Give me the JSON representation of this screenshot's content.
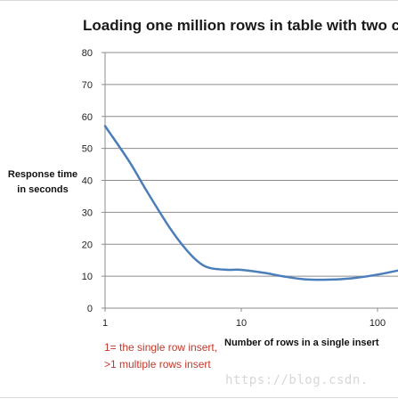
{
  "chart_data": {
    "type": "line",
    "title": "Loading one million rows in table with two c",
    "xlabel": "Number of rows in a single insert",
    "ylabel": [
      "Response time",
      "in seconds"
    ],
    "x_scale": "log",
    "xlim": [
      1,
      200
    ],
    "ylim": [
      0,
      80
    ],
    "x_ticks": [
      "1",
      "10",
      "100"
    ],
    "y_ticks": [
      "0",
      "10",
      "20",
      "30",
      "40",
      "50",
      "60",
      "70",
      "80"
    ],
    "grid": "horizontal",
    "legend": "none",
    "series": [
      {
        "color": "#4a7ebb",
        "points": [
          {
            "x": 1,
            "y": 57
          },
          {
            "x": 1.5,
            "y": 46
          },
          {
            "x": 2,
            "y": 37
          },
          {
            "x": 3,
            "y": 25
          },
          {
            "x": 4,
            "y": 18
          },
          {
            "x": 5,
            "y": 14
          },
          {
            "x": 6,
            "y": 12.5
          },
          {
            "x": 8,
            "y": 12
          },
          {
            "x": 10,
            "y": 12
          },
          {
            "x": 15,
            "y": 11
          },
          {
            "x": 20,
            "y": 10
          },
          {
            "x": 30,
            "y": 9
          },
          {
            "x": 50,
            "y": 9
          },
          {
            "x": 70,
            "y": 9.5
          },
          {
            "x": 100,
            "y": 10.5
          },
          {
            "x": 150,
            "y": 12
          },
          {
            "x": 200,
            "y": 13
          }
        ]
      }
    ]
  },
  "annotations": {
    "note_line1": "1= the single row insert,",
    "note_line2": ">1 multiple rows insert"
  },
  "watermark": "https://blog.csdn."
}
